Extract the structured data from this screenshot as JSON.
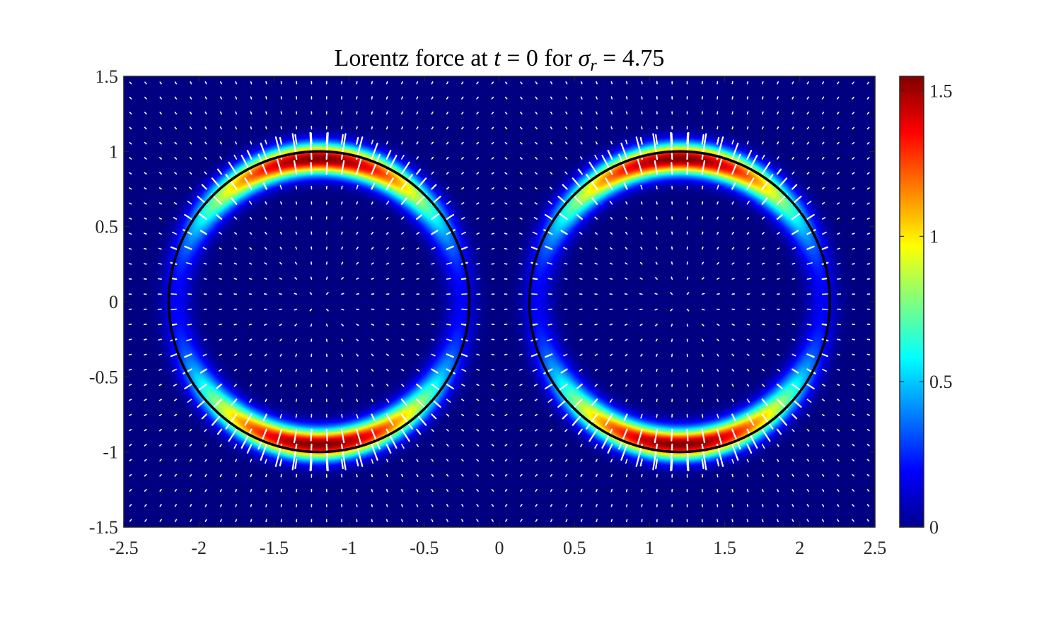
{
  "chart_data": {
    "type": "heatmap",
    "title": {
      "prefix": "Lorentz force at ",
      "t_symbol": "t",
      "t_expr": " = 0 for ",
      "sigma_symbol": "σ",
      "sigma_sub": "r",
      "sigma_expr": " = 4.75"
    },
    "xlim": [
      -2.5,
      2.5
    ],
    "ylim": [
      -1.5,
      1.5
    ],
    "xticks": [
      -2.5,
      -2,
      -1.5,
      -1,
      -0.5,
      0,
      0.5,
      1,
      1.5,
      2,
      2.5
    ],
    "xtick_labels": [
      "-2.5",
      "-2",
      "-1.5",
      "-1",
      "-0.5",
      "0",
      "0.5",
      "1",
      "1.5",
      "2",
      "2.5"
    ],
    "yticks": [
      1.5,
      1,
      0.5,
      0,
      -0.5,
      -1,
      -1.5
    ],
    "ytick_labels": [
      "1.5",
      "1",
      "0.5",
      "0",
      "-0.5",
      "-1",
      "-1.5"
    ],
    "colormap": "jet",
    "clim": [
      0,
      1.55
    ],
    "colorbar_ticks": [
      1.5,
      1,
      0.5,
      0
    ],
    "colorbar_labels": [
      "1.5",
      "1",
      "0.5",
      "0"
    ],
    "circles": [
      {
        "cx": -1.2,
        "cy": 0.0,
        "r": 1.0
      },
      {
        "cx": 1.2,
        "cy": 0.0,
        "r": 1.0
      }
    ],
    "field_peak": 1.55,
    "ring_width": 0.1,
    "quiver": "white arrows on regular grid, pointing outward from each circle, length proportional to force magnitude",
    "colors": {
      "circle": "#000000",
      "quiver": "#ffffff",
      "axes_box": "#262626"
    }
  }
}
